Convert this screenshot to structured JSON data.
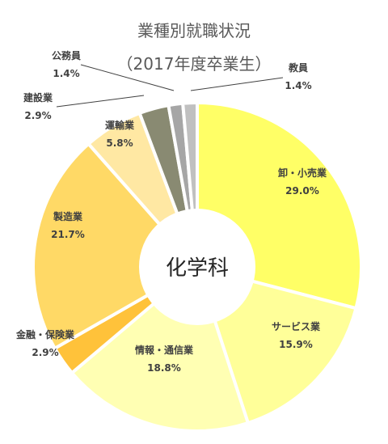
{
  "chart_data": {
    "type": "pie",
    "title": "業種別就職状況",
    "subtitle": "（2017年度卒業生）",
    "center_label": "化学科",
    "slices": [
      {
        "name": "卸・小売業",
        "value": 29.0,
        "label": "29.0%",
        "color": "#ffff66"
      },
      {
        "name": "サービス業",
        "value": 15.9,
        "label": "15.9%",
        "color": "#ffff99"
      },
      {
        "name": "情報・通信業",
        "value": 18.8,
        "label": "18.8%",
        "color": "#ffffb3"
      },
      {
        "name": "金融・保険業",
        "value": 2.9,
        "label": "2.9%",
        "color": "#ffc23a"
      },
      {
        "name": "製造業",
        "value": 21.7,
        "label": "21.7%",
        "color": "#ffd966"
      },
      {
        "name": "運輸業",
        "value": 5.8,
        "label": "5.8%",
        "color": "#ffe8a3"
      },
      {
        "name": "建設業",
        "value": 2.9,
        "label": "2.9%",
        "color": "#898a72"
      },
      {
        "name": "公務員",
        "value": 1.4,
        "label": "1.4%",
        "color": "#a6a6a6"
      },
      {
        "name": "教員",
        "value": 1.4,
        "label": "1.4%",
        "color": "#c0c0c0"
      }
    ],
    "legend": "none",
    "start": "top, clockwise"
  }
}
